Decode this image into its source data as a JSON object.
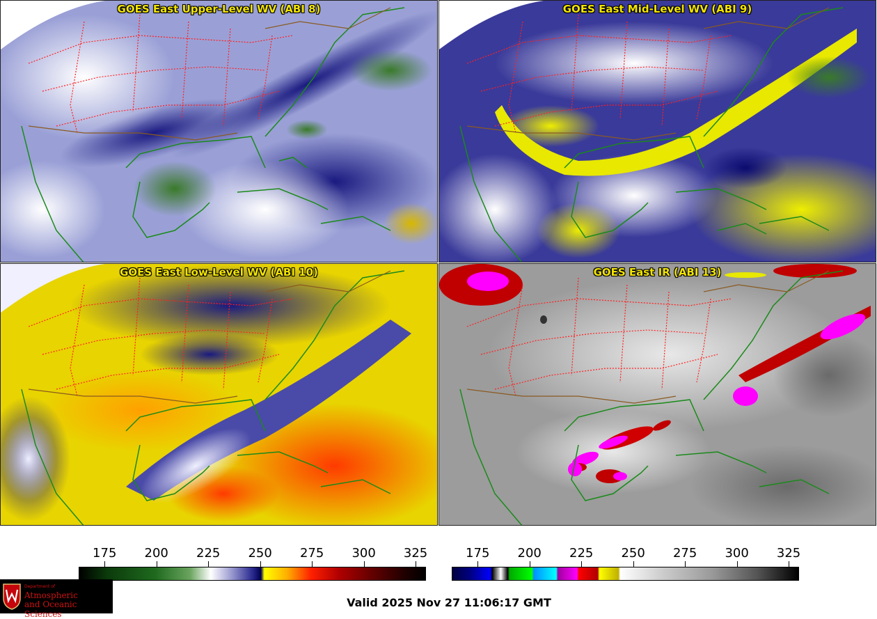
{
  "panels": [
    {
      "title": "GOES East Upper-Level WV (ABI 8)",
      "scheme": "wv-upper"
    },
    {
      "title": "GOES East Mid-Level WV (ABI 9)",
      "scheme": "wv-mid"
    },
    {
      "title": "GOES East Low-Level WV (ABI 10)",
      "scheme": "wv-low"
    },
    {
      "title": "GOES East IR (ABI 13)",
      "scheme": "ir"
    }
  ],
  "colorbars": {
    "wv": {
      "ticks": [
        "175",
        "200",
        "225",
        "250",
        "275",
        "300",
        "325"
      ],
      "range": [
        162.5,
        330
      ]
    },
    "ir": {
      "ticks": [
        "175",
        "200",
        "225",
        "250",
        "275",
        "300",
        "325"
      ],
      "range": [
        162.5,
        330
      ]
    }
  },
  "valid_time": "Valid 2025 Nov 27 11:06:17 GMT",
  "logo": {
    "line1": "Department of",
    "line2": "Atmospheric",
    "line3": "and Oceanic Sciences"
  },
  "colors": {
    "title": "#f2e400",
    "state_borders": "#ff2020",
    "coastlines": "#1a8a1a"
  }
}
